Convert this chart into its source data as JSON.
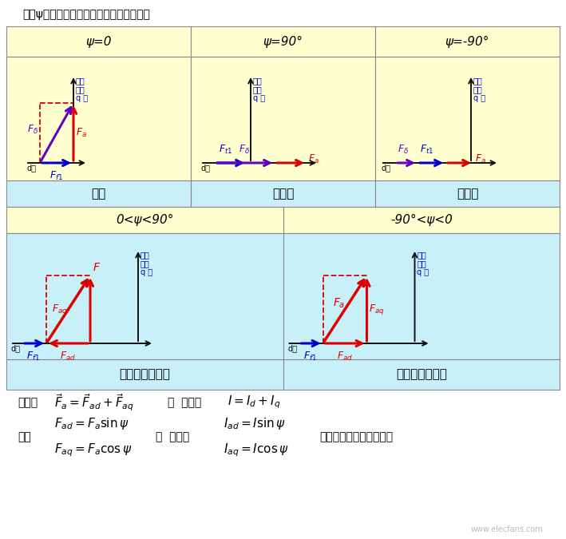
{
  "title": "不同ψ（负载性质不同）时电枢反应性质：",
  "bg_color": "#ffffd0",
  "bg_color2": "#c8f0f8",
  "table_border": "#999999",
  "row1_labels": [
    "ψ=0",
    "ψ=90°",
    "ψ=-90°"
  ],
  "row3_labels": [
    "交磁",
    "纯去磁",
    "纯助磁"
  ],
  "row4_labels": [
    "0<ψ<90°",
    "-90°<ψ<0"
  ],
  "row6_labels": [
    "直轴去磁兼交磁",
    "直轴助磁兼交磁"
  ],
  "red": "#dd0000",
  "blue": "#0000cc",
  "purple": "#6600bb",
  "axis_color": "#111111"
}
